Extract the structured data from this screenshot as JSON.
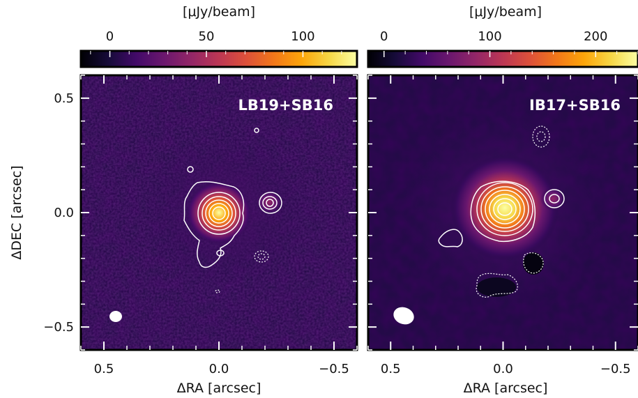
{
  "chart_data": [
    {
      "type": "heatmap",
      "title": "LB19+SB16",
      "xlabel": "ΔRA [arcsec]",
      "ylabel": "ΔDEC [arcsec]",
      "colorbar_label": "[μJy/beam]",
      "colormap": "inferno",
      "colorbar_range": [
        -15,
        128
      ],
      "colorbar_ticks": [
        0,
        50,
        100
      ],
      "colorbar_tick_labels": [
        "0",
        "50",
        "100"
      ],
      "xlim": [
        0.6,
        -0.6
      ],
      "ylim": [
        -0.6,
        0.6
      ],
      "xticks": [
        0.5,
        0.0,
        -0.5
      ],
      "xtick_labels": [
        "0.5",
        "0.0",
        "−0.5"
      ],
      "yticks": [
        0.5,
        0.0,
        -0.5
      ],
      "ytick_labels": [
        "0.5",
        "0.0",
        "−0.5"
      ],
      "peak": {
        "x": 0.0,
        "y": 0.0
      },
      "companion": {
        "x": -0.22,
        "y": 0.05
      },
      "beam": {
        "x": 0.45,
        "y": -0.45
      }
    },
    {
      "type": "heatmap",
      "title": "IB17+SB16",
      "xlabel": "ΔRA [arcsec]",
      "ylabel": "",
      "colorbar_label": "[μJy/beam]",
      "colormap": "inferno",
      "colorbar_range": [
        -15,
        240
      ],
      "colorbar_ticks": [
        0,
        100,
        200
      ],
      "colorbar_tick_labels": [
        "0",
        "100",
        "200"
      ],
      "xlim": [
        0.6,
        -0.6
      ],
      "ylim": [
        -0.6,
        0.6
      ],
      "xticks": [
        0.5,
        0.0,
        -0.5
      ],
      "xtick_labels": [
        "0.5",
        "0.0",
        "−0.5"
      ],
      "yticks": [
        0.5,
        0.0,
        -0.5
      ],
      "ytick_labels": [
        "",
        "",
        ""
      ],
      "peak": {
        "x": 0.0,
        "y": 0.02
      },
      "companion": {
        "x": -0.2,
        "y": 0.06
      },
      "beam": {
        "x": 0.47,
        "y": -0.45
      }
    }
  ]
}
